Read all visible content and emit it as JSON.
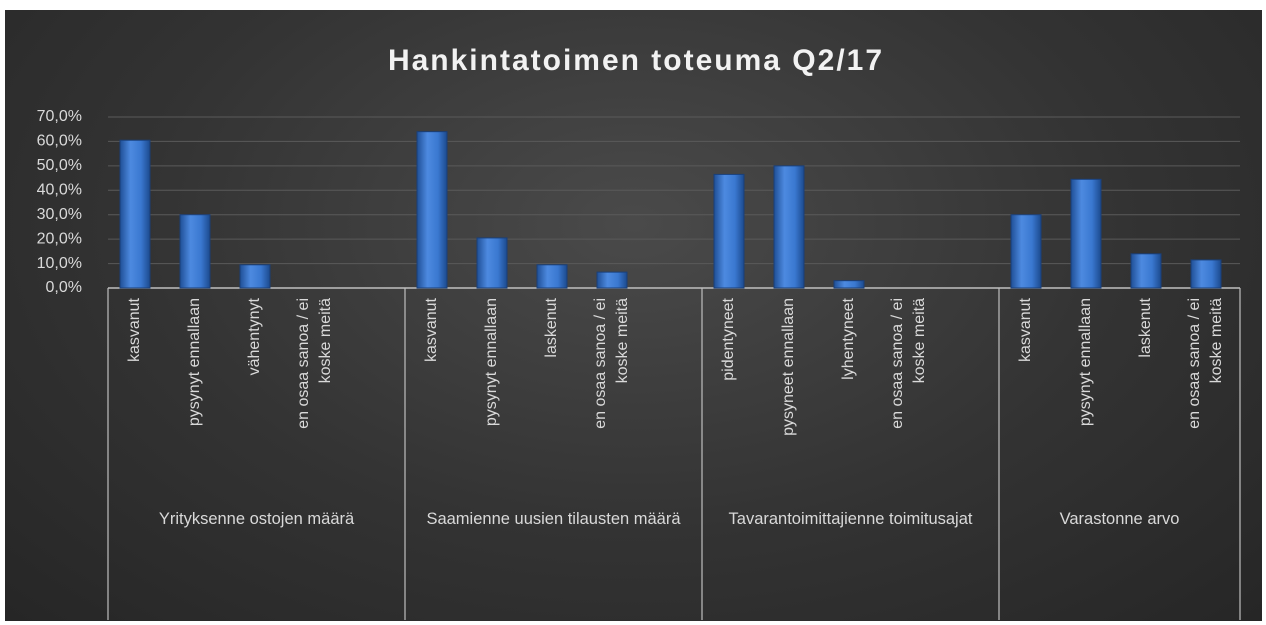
{
  "chart_data": {
    "type": "bar",
    "title": "Hankintatoimen toteuma Q2/17",
    "groups": [
      "Yrityksenne ostojen määrä",
      "Saamienne uusien tilausten määrä",
      "Tavarantoimittajienne toimitusajat",
      "Varastonne arvo"
    ],
    "categories": [
      "kasvanut",
      "pysynyt ennallaan",
      "vähentynyt",
      "en osaa sanoa / ei koske meitä",
      "kasvanut",
      "pysynyt ennallaan",
      "laskenut",
      "en osaa sanoa / ei koske meitä",
      "pidentyneet",
      "pysyneet ennallaan",
      "lyhentyneet",
      "en osaa sanoa / ei koske meitä",
      "kasvanut",
      "pysynyt ennallaan",
      "laskenut",
      "en osaa sanoa / ei koske meitä"
    ],
    "values": [
      60.5,
      30,
      9.5,
      0,
      64,
      20.5,
      9.5,
      6.5,
      46.5,
      50,
      3,
      0,
      30,
      44.5,
      14,
      11.5
    ],
    "color": "#3a78d0",
    "ylim": [
      0,
      70
    ],
    "yticks": [
      {
        "value": 0,
        "label": "0,0%"
      },
      {
        "value": 10,
        "label": "10,0%"
      },
      {
        "value": 20,
        "label": "20,0%"
      },
      {
        "value": 30,
        "label": "30,0%"
      },
      {
        "value": 40,
        "label": "40,0%"
      },
      {
        "value": 50,
        "label": "50,0%"
      },
      {
        "value": 60,
        "label": "60,0%"
      },
      {
        "value": 70,
        "label": "70,0%"
      }
    ],
    "grid": true
  }
}
